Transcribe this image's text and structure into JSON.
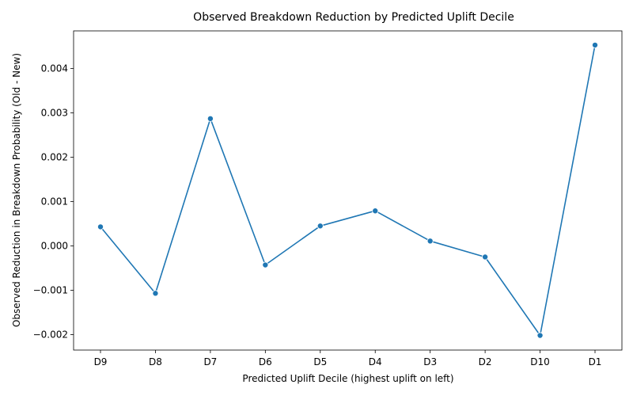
{
  "chart_data": {
    "type": "line",
    "title": "Observed Breakdown Reduction by Predicted Uplift Decile",
    "xlabel": "Predicted Uplift Decile (highest uplift on left)",
    "ylabel": "Observed Reduction in Breakdown Probability (Old - New)",
    "categories": [
      "D9",
      "D8",
      "D7",
      "D6",
      "D5",
      "D4",
      "D3",
      "D2",
      "D10",
      "D1"
    ],
    "values": [
      0.00043,
      -0.00107,
      0.00287,
      -0.00043,
      0.00045,
      0.00079,
      0.00011,
      -0.00025,
      -0.00202,
      0.00453
    ],
    "ylim": [
      -0.00235,
      0.00485
    ],
    "yticks": [
      -0.002,
      -0.001,
      0.0,
      0.001,
      0.002,
      0.003,
      0.004
    ],
    "ytick_labels": [
      "−0.002",
      "−0.001",
      "0.000",
      "0.001",
      "0.002",
      "0.003",
      "0.004"
    ],
    "grid": false,
    "line_color": "#1f77b4",
    "marker": "circle"
  }
}
